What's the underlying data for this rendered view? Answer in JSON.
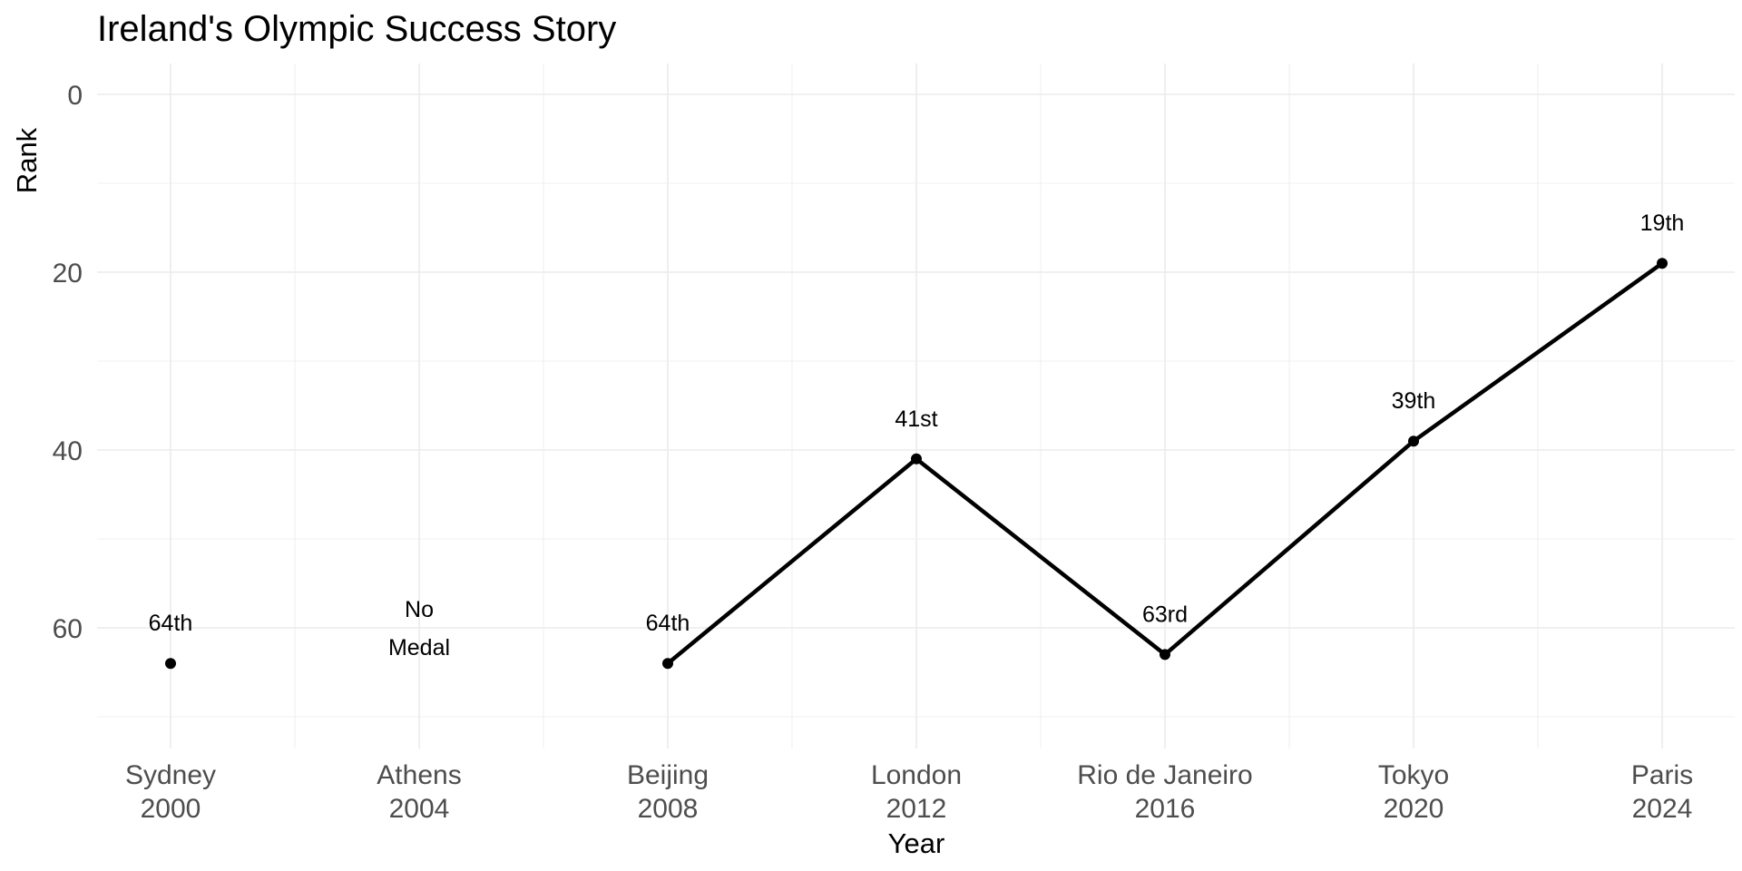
{
  "chart_data": {
    "type": "line",
    "title": "Ireland's Olympic Success Story",
    "xlabel": "Year",
    "ylabel": "Rank",
    "y_reversed": true,
    "ylim": [
      0,
      73
    ],
    "yticks": [
      0,
      20,
      40,
      60
    ],
    "grid": true,
    "categories": [
      [
        "Sydney",
        "2000"
      ],
      [
        "Athens",
        "2004"
      ],
      [
        "Beijing",
        "2008"
      ],
      [
        "London",
        "2012"
      ],
      [
        "Rio de Janeiro",
        "2016"
      ],
      [
        "Tokyo",
        "2020"
      ],
      [
        "Paris",
        "2024"
      ]
    ],
    "values": [
      64,
      null,
      64,
      41,
      63,
      39,
      19
    ],
    "labels": [
      "64th",
      "No Medal",
      "64th",
      "41st",
      "63rd",
      "39th",
      "19th"
    ],
    "line_segments": [
      [
        2,
        6
      ]
    ],
    "color": "#000000"
  }
}
